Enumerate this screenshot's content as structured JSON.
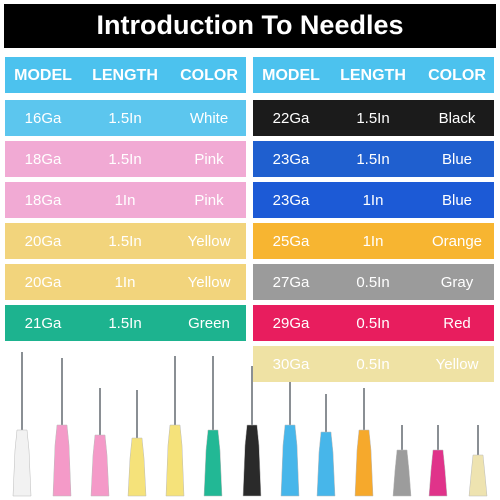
{
  "title": "Introduction To Needles",
  "tables": [
    {
      "header": [
        "MODEL",
        "LENGTH",
        "COLOR"
      ],
      "header_color": "#4cc2ee",
      "rows": [
        {
          "cells": [
            "16Ga",
            "1.5In",
            "White"
          ],
          "color": "#5cc6ee"
        },
        {
          "cells": [
            "18Ga",
            "1.5In",
            "Pink"
          ],
          "color": "#f1aad4"
        },
        {
          "cells": [
            "18Ga",
            "1In",
            "Pink"
          ],
          "color": "#f1aad4"
        },
        {
          "cells": [
            "20Ga",
            "1.5In",
            "Yellow"
          ],
          "color": "#f2d47c"
        },
        {
          "cells": [
            "20Ga",
            "1In",
            "Yellow"
          ],
          "color": "#f2d47c"
        },
        {
          "cells": [
            "21Ga",
            "1.5In",
            "Green"
          ],
          "color": "#1db38f"
        }
      ]
    },
    {
      "header": [
        "MODEL",
        "LENGTH",
        "COLOR"
      ],
      "header_color": "#4cc2ee",
      "rows": [
        {
          "cells": [
            "22Ga",
            "1.5In",
            "Black"
          ],
          "color": "#1b1b1b"
        },
        {
          "cells": [
            "23Ga",
            "1.5In",
            "Blue"
          ],
          "color": "#1f5fcf"
        },
        {
          "cells": [
            "23Ga",
            "1In",
            "Blue"
          ],
          "color": "#1c5ad6"
        },
        {
          "cells": [
            "25Ga",
            "1In",
            "Orange"
          ],
          "color": "#f7b531"
        },
        {
          "cells": [
            "27Ga",
            "0.5In",
            "Gray"
          ],
          "color": "#9b9b9b"
        },
        {
          "cells": [
            "29Ga",
            "0.5In",
            "Red"
          ],
          "color": "#e81d5e"
        },
        {
          "cells": [
            "30Ga",
            "0.5In",
            "Yellow"
          ],
          "color": "#efe2a4"
        }
      ]
    }
  ]
}
